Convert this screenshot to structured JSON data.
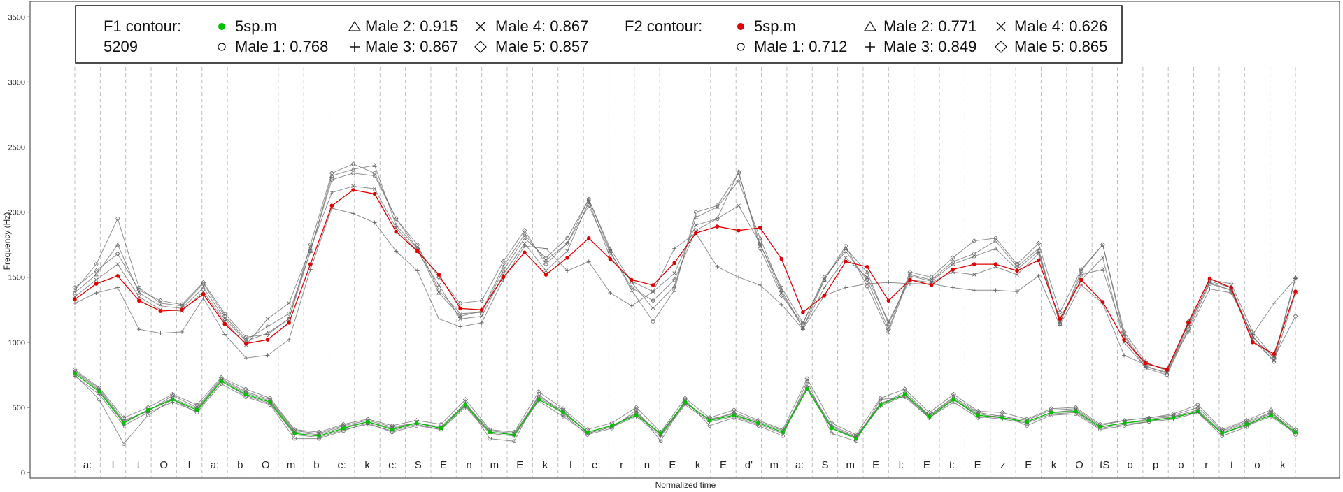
{
  "chart_data": {
    "type": "line",
    "xlabel": "Normalized time",
    "ylabel": "Frequency (Hz)",
    "ylim": [
      0,
      3600
    ],
    "yticks": [
      "0",
      "500",
      "1000",
      "1500",
      "2000",
      "2500",
      "3000",
      "3500"
    ],
    "grid": "vertical dashed segment boundaries",
    "legend_position": "top",
    "segments": [
      "a:",
      "l",
      "t",
      "O",
      "l",
      "a:",
      "b",
      "O",
      "m",
      "b",
      "e:",
      "k",
      "e:",
      "S",
      "E",
      "n",
      "m",
      "E",
      "k",
      "f",
      "e:",
      "r",
      "n",
      "E",
      "k",
      "E",
      "d'",
      "m",
      "a:",
      "S",
      "m",
      "E",
      "l:",
      "E",
      "t:",
      "E",
      "z",
      "E",
      "k",
      "O",
      "tS",
      "o",
      "p",
      "o",
      "r",
      "t",
      "o",
      "k"
    ],
    "legend": {
      "f1_title": "F1 contour:",
      "f1_id": "5209",
      "f2_title": "F2 contour:",
      "f1_entries": [
        "5sp.m",
        "Male 1: 0.768",
        "Male 2: 0.915",
        "Male 3: 0.867",
        "Male 4: 0.867",
        "Male 5: 0.857"
      ],
      "f2_entries": [
        "5sp.m",
        "Male 1: 0.712",
        "Male 2: 0.771",
        "Male 3: 0.849",
        "Male 4: 0.626",
        "Male 5: 0.865"
      ]
    },
    "series": [
      {
        "name": "5sp.m",
        "formant": "F1",
        "color": "#00c000",
        "marker": "filled-circle",
        "values": [
          760,
          620,
          380,
          480,
          560,
          480,
          700,
          600,
          540,
          300,
          280,
          340,
          390,
          330,
          380,
          340,
          520,
          310,
          290,
          560,
          460,
          310,
          360,
          440,
          300,
          540,
          400,
          440,
          380,
          310,
          640,
          340,
          260,
          520,
          600,
          430,
          560,
          440,
          420,
          390,
          460,
          470,
          350,
          380,
          400,
          420,
          470,
          300,
          370,
          440,
          310
        ]
      },
      {
        "name": "Male 1",
        "formant": "F1",
        "color": "#555555",
        "marker": "open-circle",
        "values": [
          750,
          560,
          220,
          440,
          560,
          460,
          680,
          580,
          520,
          260,
          260,
          320,
          380,
          310,
          360,
          330,
          540,
          260,
          240,
          600,
          450,
          290,
          340,
          480,
          240,
          560,
          360,
          420,
          360,
          280,
          700,
          300,
          240,
          560,
          580,
          420,
          540,
          420,
          440,
          360,
          440,
          450,
          330,
          360,
          390,
          430,
          460,
          280,
          350,
          470,
          290
        ]
      },
      {
        "name": "Male 2",
        "formant": "F1",
        "color": "#555555",
        "marker": "triangle",
        "values": [
          780,
          640,
          400,
          470,
          590,
          500,
          720,
          620,
          560,
          320,
          300,
          360,
          400,
          350,
          380,
          350,
          530,
          320,
          300,
          580,
          480,
          300,
          350,
          460,
          290,
          540,
          400,
          460,
          390,
          320,
          660,
          360,
          280,
          520,
          620,
          440,
          580,
          460,
          430,
          400,
          480,
          490,
          360,
          400,
          420,
          440,
          500,
          320,
          390,
          460,
          320
        ]
      },
      {
        "name": "Male 3",
        "formant": "F1",
        "color": "#555555",
        "marker": "plus",
        "values": [
          740,
          600,
          360,
          460,
          540,
          470,
          700,
          590,
          530,
          290,
          270,
          330,
          370,
          320,
          370,
          330,
          500,
          300,
          280,
          550,
          430,
          300,
          350,
          430,
          280,
          520,
          390,
          430,
          370,
          300,
          640,
          340,
          270,
          510,
          590,
          420,
          560,
          430,
          410,
          380,
          450,
          460,
          340,
          370,
          390,
          410,
          460,
          300,
          360,
          430,
          300
        ]
      },
      {
        "name": "Male 4",
        "formant": "F1",
        "color": "#555555",
        "marker": "cross",
        "values": [
          770,
          630,
          390,
          480,
          570,
          490,
          710,
          610,
          550,
          310,
          290,
          350,
          390,
          340,
          380,
          340,
          510,
          310,
          290,
          570,
          470,
          310,
          360,
          450,
          290,
          530,
          410,
          450,
          380,
          310,
          650,
          350,
          270,
          530,
          600,
          440,
          570,
          450,
          420,
          390,
          460,
          480,
          350,
          380,
          410,
          430,
          480,
          310,
          380,
          450,
          310
        ]
      },
      {
        "name": "Male 5",
        "formant": "F1",
        "color": "#555555",
        "marker": "diamond",
        "values": [
          790,
          650,
          420,
          500,
          600,
          520,
          730,
          640,
          570,
          330,
          310,
          370,
          410,
          360,
          400,
          370,
          560,
          330,
          310,
          620,
          490,
          330,
          380,
          500,
          310,
          570,
          420,
          480,
          400,
          330,
          720,
          380,
          290,
          570,
          640,
          460,
          600,
          470,
          460,
          410,
          490,
          500,
          370,
          400,
          420,
          450,
          520,
          330,
          400,
          480,
          330
        ]
      },
      {
        "name": "5sp.m",
        "formant": "F2",
        "color": "#e00000",
        "marker": "filled-circle",
        "values": [
          1330,
          1450,
          1510,
          1320,
          1240,
          1250,
          1370,
          1140,
          990,
          1020,
          1150,
          1600,
          2050,
          2170,
          2140,
          1850,
          1700,
          1520,
          1260,
          1250,
          1500,
          1690,
          1520,
          1650,
          1800,
          1640,
          1480,
          1440,
          1610,
          1840,
          1890,
          1860,
          1880,
          1640,
          1230,
          1360,
          1620,
          1580,
          1320,
          1480,
          1440,
          1560,
          1600,
          1600,
          1550,
          1630,
          1180,
          1480,
          1310,
          1020,
          840,
          790,
          1150,
          1490,
          1420,
          1000,
          910,
          1390
        ]
      },
      {
        "name": "Male 1",
        "formant": "F2",
        "color": "#555555",
        "marker": "open-circle",
        "values": [
          1400,
          1600,
          1950,
          1420,
          1300,
          1280,
          1450,
          1200,
          1020,
          1120,
          1220,
          1700,
          2250,
          2300,
          2280,
          1950,
          1750,
          1400,
          1220,
          1230,
          1550,
          1800,
          1650,
          1800,
          2100,
          1700,
          1400,
          1160,
          1400,
          2000,
          2050,
          2300,
          1750,
          1420,
          1150,
          1480,
          1740,
          1430,
          1080,
          1520,
          1480,
          1620,
          1680,
          1780,
          1580,
          1720,
          1140,
          1550,
          1750,
          1050,
          800,
          750,
          1100,
          1450,
          1400,
          1050,
          850,
          1380
        ]
      },
      {
        "name": "Male 2",
        "formant": "F2",
        "color": "#555555",
        "marker": "triangle",
        "values": [
          1380,
          1520,
          1750,
          1380,
          1280,
          1260,
          1420,
          1180,
          1010,
          1070,
          1180,
          1700,
          2280,
          2330,
          2360,
          1900,
          1720,
          1380,
          1200,
          1240,
          1580,
          1830,
          1630,
          1760,
          2100,
          1720,
          1460,
          1260,
          1430,
          1960,
          2040,
          2240,
          1800,
          1400,
          1110,
          1480,
          1720,
          1540,
          1140,
          1510,
          1470,
          1600,
          1660,
          1720,
          1560,
          1700,
          1150,
          1520,
          1560,
          1060,
          820,
          760,
          1120,
          1470,
          1420,
          1040,
          880,
          1500
        ]
      },
      {
        "name": "Male 3",
        "formant": "F2",
        "color": "#555555",
        "marker": "plus",
        "values": [
          1300,
          1380,
          1420,
          1100,
          1070,
          1080,
          1340,
          1060,
          880,
          900,
          1020,
          1560,
          2030,
          1990,
          1920,
          1700,
          1550,
          1180,
          1120,
          1150,
          1480,
          1740,
          1720,
          1550,
          1620,
          1380,
          1280,
          1390,
          1720,
          1840,
          1580,
          1500,
          1440,
          1290,
          1100,
          1360,
          1420,
          1450,
          1460,
          1450,
          1450,
          1420,
          1400,
          1400,
          1390,
          1510,
          1130,
          1440,
          1300,
          900,
          830,
          800,
          1080,
          1410,
          1380,
          1060,
          1300,
          1490
        ]
      },
      {
        "name": "Male 4",
        "formant": "F2",
        "color": "#555555",
        "marker": "cross",
        "values": [
          1350,
          1480,
          1600,
          1350,
          1250,
          1240,
          1390,
          1160,
          980,
          1180,
          1300,
          1720,
          2150,
          2200,
          2180,
          1880,
          1700,
          1440,
          1180,
          1200,
          1520,
          1760,
          1550,
          1700,
          2080,
          1650,
          1470,
          1390,
          1530,
          1900,
          1950,
          2050,
          1760,
          1380,
          1110,
          1420,
          1650,
          1500,
          1160,
          1480,
          1460,
          1540,
          1520,
          1580,
          1520,
          1680,
          1160,
          1480,
          1650,
          1000,
          810,
          770,
          1140,
          1460,
          1400,
          1020,
          860,
          1490
        ]
      },
      {
        "name": "Male 5",
        "formant": "F2",
        "color": "#555555",
        "marker": "diamond",
        "values": [
          1420,
          1550,
          1680,
          1400,
          1320,
          1290,
          1460,
          1220,
          1040,
          1060,
          1180,
          1750,
          2300,
          2370,
          2300,
          1950,
          1720,
          1500,
          1300,
          1320,
          1620,
          1860,
          1600,
          1760,
          2050,
          1690,
          1420,
          1320,
          1480,
          1860,
          1950,
          2310,
          1720,
          1360,
          1140,
          1500,
          1700,
          1480,
          1100,
          1540,
          1500,
          1650,
          1780,
          1800,
          1600,
          1760,
          1230,
          1560,
          1750,
          1080,
          850,
          780,
          1160,
          1480,
          1450,
          1080,
          880,
          1200
        ]
      }
    ]
  }
}
